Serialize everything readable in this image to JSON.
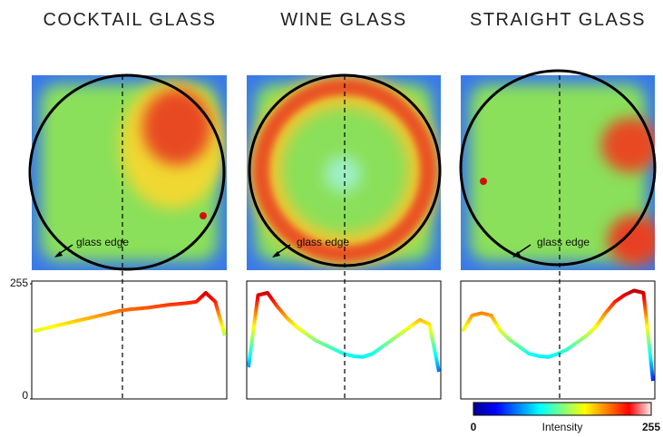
{
  "chart_data": [
    {
      "type": "line",
      "title": "COCKTAIL GLASS",
      "annotation": "glass edge",
      "values": [
        150,
        155,
        160,
        165,
        170,
        175,
        180,
        185,
        190,
        195,
        198,
        200,
        202,
        205,
        208,
        210,
        212,
        215,
        235,
        215,
        140
      ],
      "ylim": [
        0,
        255
      ],
      "yticks": [
        0,
        255
      ]
    },
    {
      "type": "line",
      "title": "WINE GLASS",
      "annotation": "glass edge",
      "values": [
        70,
        230,
        235,
        205,
        180,
        160,
        145,
        130,
        120,
        110,
        100,
        95,
        93,
        100,
        115,
        130,
        145,
        160,
        175,
        165,
        60
      ],
      "ylim": [
        0,
        255
      ]
    },
    {
      "type": "line",
      "title": "STRAIGHT GLASS",
      "annotation": "glass edge",
      "values": [
        150,
        185,
        190,
        185,
        150,
        130,
        115,
        100,
        95,
        93,
        100,
        110,
        125,
        140,
        160,
        190,
        215,
        230,
        240,
        235,
        40
      ],
      "ylim": [
        0,
        255
      ]
    }
  ],
  "colorbar": {
    "label": "Intensity",
    "ticks": [
      0,
      255
    ]
  }
}
